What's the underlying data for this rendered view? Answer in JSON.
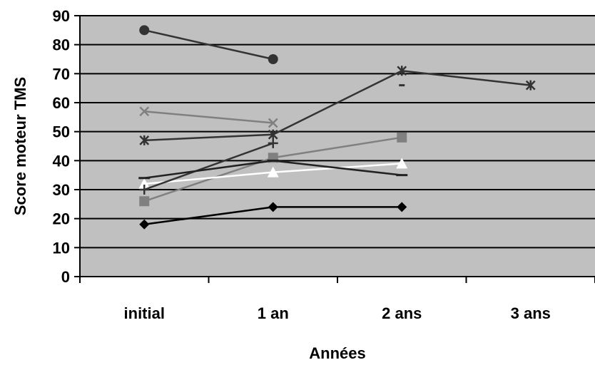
{
  "chart_data": {
    "type": "line",
    "title": "",
    "xlabel": "Années",
    "ylabel": "Score moteur TMS",
    "categories": [
      "initial",
      "1 an",
      "2 ans",
      "3 ans"
    ],
    "ylim": [
      0,
      90
    ],
    "yticks": [
      0,
      10,
      20,
      30,
      40,
      50,
      60,
      70,
      80,
      90
    ],
    "grid": true,
    "plot_background": "#c0c0c0",
    "legend": "none",
    "series": [
      {
        "marker": "diamond",
        "color": "#000000",
        "values": [
          18,
          24,
          24,
          null
        ]
      },
      {
        "marker": "square",
        "color": "#808080",
        "values": [
          26,
          41,
          48,
          null
        ]
      },
      {
        "marker": "triangle",
        "color": "#ffffff",
        "values": [
          32,
          36,
          39,
          null
        ]
      },
      {
        "marker": "x",
        "color": "#808080",
        "values": [
          57,
          53,
          null,
          null
        ]
      },
      {
        "marker": "asterisk",
        "color": "#333333",
        "values": [
          47,
          49,
          71,
          66
        ]
      },
      {
        "marker": "circle",
        "color": "#333333",
        "values": [
          85,
          75,
          null,
          null
        ]
      },
      {
        "marker": "plus",
        "color": "#333333",
        "values": [
          30,
          46,
          null,
          null
        ]
      },
      {
        "marker": "dash",
        "color": "#222222",
        "values": [
          34,
          40,
          35,
          null
        ]
      },
      {
        "marker": "short-dash",
        "color": "#333333",
        "values": [
          null,
          null,
          66,
          null
        ]
      }
    ]
  }
}
